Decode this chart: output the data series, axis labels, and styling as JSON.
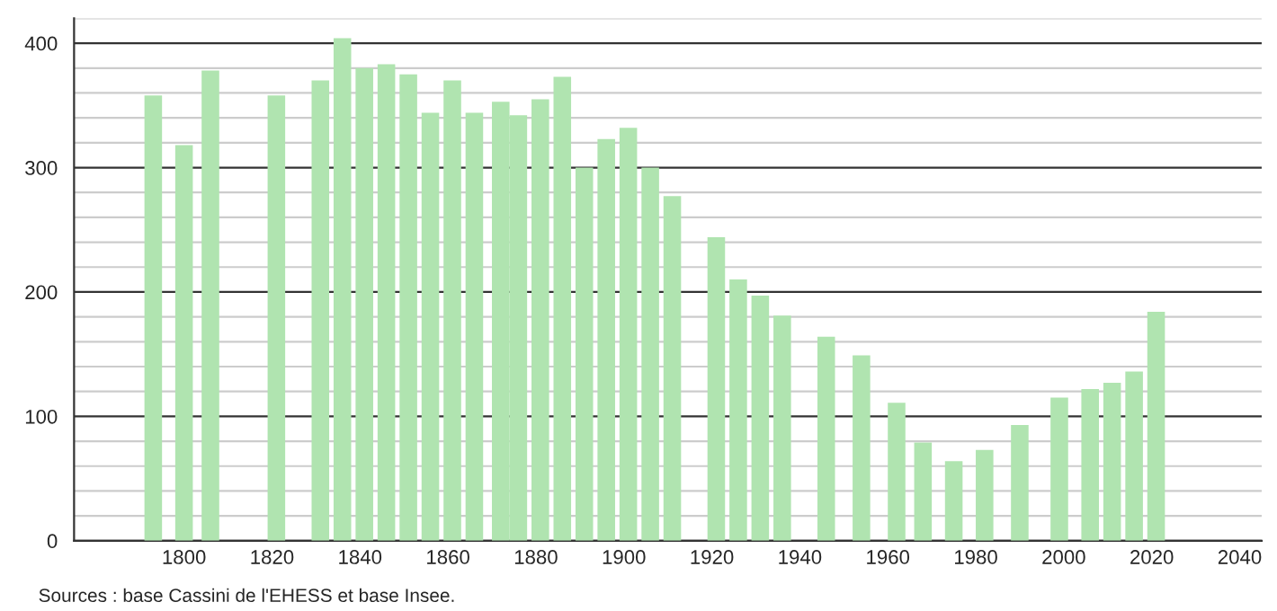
{
  "chart_data": {
    "type": "bar",
    "x": [
      1793,
      1800,
      1806,
      1821,
      1831,
      1836,
      1841,
      1846,
      1851,
      1856,
      1861,
      1866,
      1872,
      1876,
      1881,
      1886,
      1891,
      1896,
      1901,
      1906,
      1911,
      1921,
      1926,
      1931,
      1936,
      1946,
      1954,
      1962,
      1968,
      1975,
      1982,
      1990,
      1999,
      2006,
      2011,
      2016,
      2021
    ],
    "values": [
      358,
      318,
      378,
      358,
      370,
      404,
      380,
      383,
      375,
      344,
      370,
      344,
      353,
      342,
      355,
      373,
      300,
      323,
      332,
      300,
      277,
      244,
      210,
      197,
      181,
      164,
      149,
      111,
      79,
      64,
      73,
      93,
      115,
      122,
      127,
      136,
      184
    ],
    "color": "#b0e4b0",
    "xlim": [
      1775,
      2045
    ],
    "xticks": [
      1800,
      1820,
      1840,
      1860,
      1880,
      1900,
      1920,
      1940,
      1960,
      1980,
      2000,
      2020,
      2040
    ],
    "ylim": [
      0,
      420
    ],
    "yticks": [
      0,
      {
        "value": 20,
        "label": null
      },
      {
        "value": 40,
        "label": null
      },
      {
        "value": 60,
        "label": null
      },
      {
        "value": 80,
        "label": null
      },
      100,
      {
        "value": 120,
        "label": null
      },
      {
        "value": 140,
        "label": null
      },
      {
        "value": 160,
        "label": null
      },
      {
        "value": 180,
        "label": null
      },
      200,
      {
        "value": 220,
        "label": null
      },
      {
        "value": 240,
        "label": null
      },
      {
        "value": 260,
        "label": null
      },
      {
        "value": 280,
        "label": null
      },
      300,
      {
        "value": 320,
        "label": null
      },
      {
        "value": 340,
        "label": null
      },
      {
        "value": 360,
        "label": null
      },
      {
        "value": 380,
        "label": null
      },
      400,
      {
        "value": 420,
        "label": null
      }
    ],
    "grid": "y",
    "legend": false,
    "annotations": [
      "Sources : base Cassini de l'EHESS et base Insee."
    ]
  }
}
